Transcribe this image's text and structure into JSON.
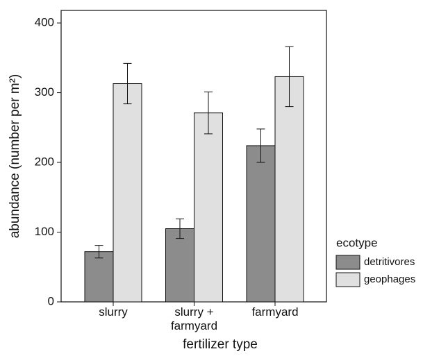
{
  "chart_data": {
    "type": "bar",
    "x_label": "fertilizer type",
    "y_label": "abundance (number per m²)",
    "categories": [
      "slurry",
      "slurry + farmyard",
      "farmyard"
    ],
    "series": [
      {
        "name": "detritivores",
        "color": "#8c8c8c",
        "values": [
          72,
          105,
          224
        ],
        "errors": [
          9,
          14,
          24
        ]
      },
      {
        "name": "geophages",
        "color": "#e0e0e0",
        "values": [
          313,
          271,
          323
        ],
        "errors": [
          29,
          30,
          43
        ]
      }
    ],
    "ylim": [
      0,
      418
    ],
    "yticks": [
      0,
      100,
      200,
      300,
      400
    ],
    "legend_title": "ecotype",
    "legend": "right"
  }
}
